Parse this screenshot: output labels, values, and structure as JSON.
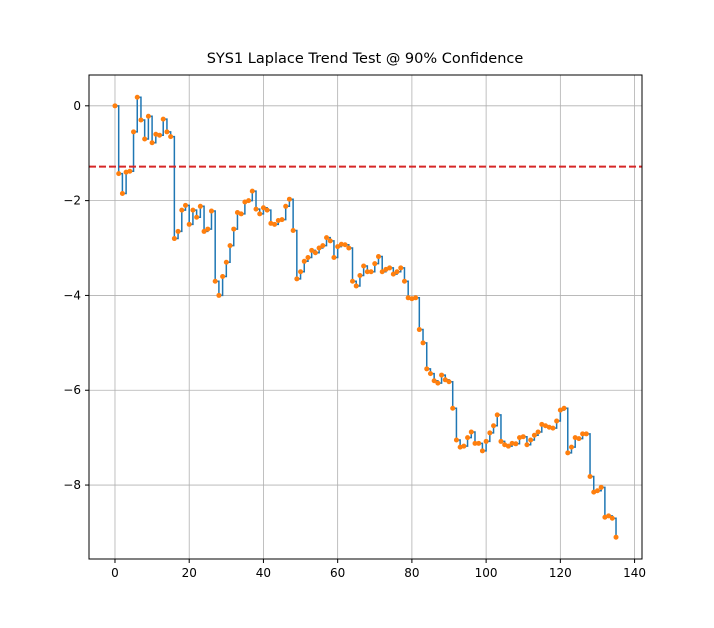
{
  "chart_data": {
    "type": "step",
    "title": "SYS1 Laplace Trend Test @ 90% Confidence",
    "x": [
      0,
      1,
      2,
      3,
      4,
      5,
      6,
      7,
      8,
      9,
      10,
      11,
      12,
      13,
      14,
      15,
      16,
      17,
      18,
      19,
      20,
      21,
      22,
      23,
      24,
      25,
      26,
      27,
      28,
      29,
      30,
      31,
      32,
      33,
      34,
      35,
      36,
      37,
      38,
      39,
      40,
      41,
      42,
      43,
      44,
      45,
      46,
      47,
      48,
      49,
      50,
      51,
      52,
      53,
      54,
      55,
      56,
      57,
      58,
      59,
      60,
      61,
      62,
      63,
      64,
      65,
      66,
      67,
      68,
      69,
      70,
      71,
      72,
      73,
      74,
      75,
      76,
      77,
      78,
      79,
      80,
      81,
      82,
      83,
      84,
      85,
      86,
      87,
      88,
      89,
      90,
      91,
      92,
      93,
      94,
      95,
      96,
      97,
      98,
      99,
      100,
      101,
      102,
      103,
      104,
      105,
      106,
      107,
      108,
      109,
      110,
      111,
      112,
      113,
      114,
      115,
      116,
      117,
      118,
      119,
      120,
      121,
      122,
      123,
      124,
      125,
      126,
      127,
      128,
      129,
      130,
      131,
      132,
      133,
      134,
      135
    ],
    "series": [
      {
        "line_color": "#1f77b4",
        "marker_color": "#ff7f0e",
        "values": [
          0,
          -1.43,
          -1.85,
          -1.4,
          -1.38,
          -0.55,
          0.18,
          -0.3,
          -0.7,
          -0.22,
          -0.78,
          -0.6,
          -0.62,
          -0.28,
          -0.55,
          -0.65,
          -2.8,
          -2.65,
          -2.2,
          -2.1,
          -2.5,
          -2.2,
          -2.35,
          -2.12,
          -2.65,
          -2.6,
          -2.22,
          -3.7,
          -4.0,
          -3.6,
          -3.3,
          -2.95,
          -2.6,
          -2.25,
          -2.28,
          -2.03,
          -2.0,
          -1.8,
          -2.18,
          -2.28,
          -2.15,
          -2.2,
          -2.48,
          -2.5,
          -2.42,
          -2.4,
          -2.12,
          -1.97,
          -2.63,
          -3.65,
          -3.5,
          -3.28,
          -3.2,
          -3.05,
          -3.1,
          -3.0,
          -2.95,
          -2.78,
          -2.85,
          -3.2,
          -2.97,
          -2.92,
          -2.93,
          -3.0,
          -3.7,
          -3.8,
          -3.58,
          -3.38,
          -3.5,
          -3.5,
          -3.33,
          -3.18,
          -3.5,
          -3.45,
          -3.42,
          -3.55,
          -3.5,
          -3.42,
          -3.7,
          -4.05,
          -4.07,
          -4.05,
          -4.72,
          -5.0,
          -5.55,
          -5.65,
          -5.8,
          -5.85,
          -5.68,
          -5.78,
          -5.82,
          -6.38,
          -7.05,
          -7.2,
          -7.18,
          -7.0,
          -6.88,
          -7.12,
          -7.12,
          -7.28,
          -7.08,
          -6.9,
          -6.75,
          -6.52,
          -7.08,
          -7.15,
          -7.18,
          -7.12,
          -7.13,
          -7.0,
          -6.98,
          -7.15,
          -7.05,
          -6.95,
          -6.88,
          -6.72,
          -6.75,
          -6.78,
          -6.8,
          -6.65,
          -6.42,
          -6.38,
          -7.32,
          -7.2,
          -7.0,
          -7.02,
          -6.92,
          -6.92,
          -7.82,
          -8.15,
          -8.12,
          -8.05,
          -8.68,
          -8.65,
          -8.7,
          -9.1
        ]
      }
    ],
    "threshold": {
      "value": -1.2816,
      "color": "#d62728"
    },
    "xlim": [
      -7,
      142
    ],
    "ylim": [
      -9.56,
      0.65
    ],
    "xticks": [
      0,
      20,
      40,
      60,
      80,
      100,
      120,
      140
    ],
    "yticks": [
      {
        "value": -8,
        "label": "−8"
      },
      {
        "value": -6,
        "label": "−6"
      },
      {
        "value": -4,
        "label": "−4"
      },
      {
        "value": -2,
        "label": "−2"
      },
      0
    ],
    "grid": true
  }
}
